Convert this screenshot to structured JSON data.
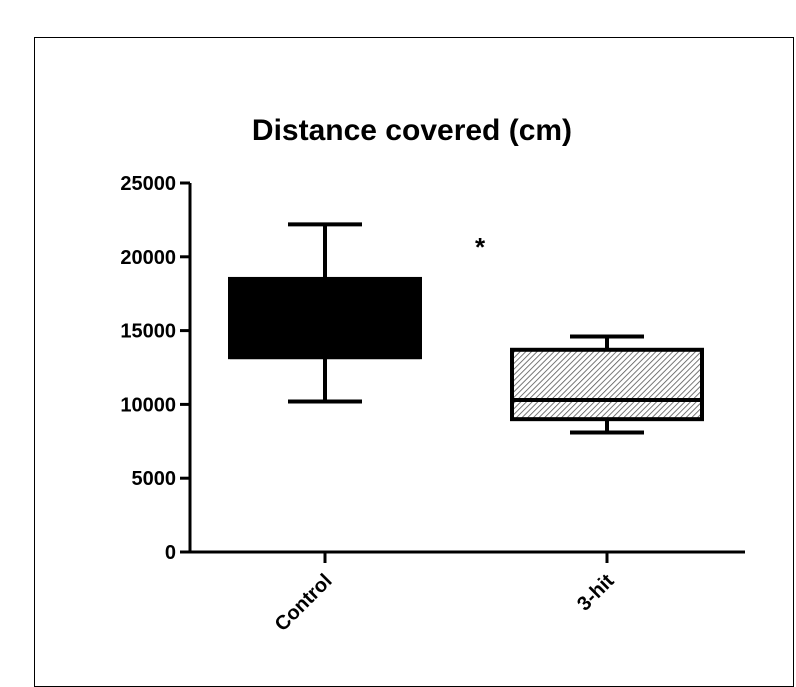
{
  "chart_data": {
    "type": "box",
    "title": "Distance covered (cm)",
    "xlabel": "",
    "ylabel": "",
    "ylim": [
      0,
      25000
    ],
    "yticks": [
      0,
      5000,
      10000,
      15000,
      20000,
      25000
    ],
    "yticklabels": [
      "0",
      "5000",
      "10000",
      "15000",
      "20000",
      "25000"
    ],
    "categories": [
      "Control",
      "3-hit"
    ],
    "boxes": [
      {
        "name": "Control",
        "min": 10200,
        "q1": 13200,
        "median": 13200,
        "q3": 18500,
        "max": 22200,
        "fill": "solid",
        "color": "#000000"
      },
      {
        "name": "3-hit",
        "min": 8100,
        "q1": 9000,
        "median": 10300,
        "q3": 13700,
        "max": 14600,
        "fill": "hatched",
        "color": "#000000"
      }
    ],
    "annotations": [
      {
        "text": "*",
        "x_between": [
          "Control",
          "3-hit"
        ],
        "y": 21000
      }
    ],
    "grid": false,
    "legend": "none"
  }
}
